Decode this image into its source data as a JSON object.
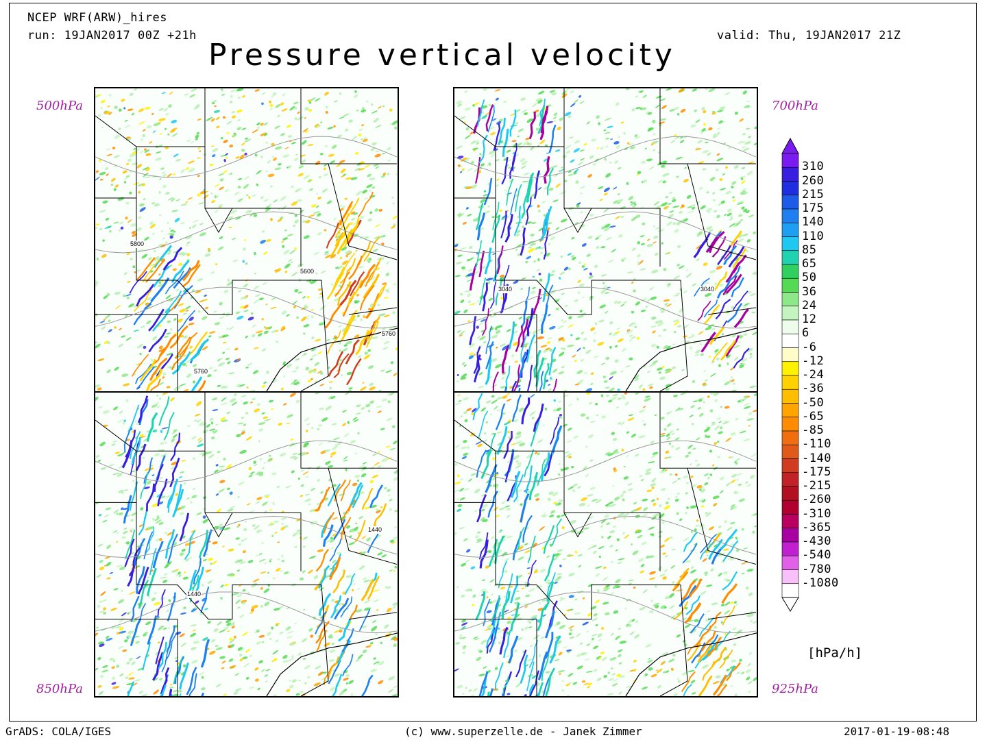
{
  "header": {
    "model": "NCEP WRF(ARW)_hires",
    "run": "run: 19JAN2017 00Z +21h",
    "valid": "valid: Thu, 19JAN2017 21Z",
    "title": "Pressure vertical velocity"
  },
  "panels": [
    {
      "level": "500hPa",
      "contour_labels": [
        "5800",
        "5600",
        "5760",
        "5760"
      ]
    },
    {
      "level": "700hPa",
      "contour_labels": [
        "3040",
        "3040"
      ]
    },
    {
      "level": "850hPa",
      "contour_labels": [
        "1440",
        "1440"
      ]
    },
    {
      "level": "925hPa",
      "contour_labels": []
    }
  ],
  "colorbar": {
    "labels": [
      "310",
      "260",
      "215",
      "175",
      "140",
      "110",
      "85",
      "65",
      "50",
      "36",
      "24",
      "12",
      "6",
      "-6",
      "-12",
      "-24",
      "-36",
      "-50",
      "-65",
      "-85",
      "-110",
      "-140",
      "-175",
      "-215",
      "-260",
      "-310",
      "-365",
      "-430",
      "-540",
      "-780",
      "-1080"
    ],
    "colors": [
      "#7a1cf0",
      "#3a1ee0",
      "#1f2fe0",
      "#1e5ce8",
      "#1f7ff0",
      "#1ea0f2",
      "#1ec8f0",
      "#20d2b0",
      "#2fd060",
      "#55da55",
      "#8ee88a",
      "#c4f5c0",
      "#eefcec",
      "#ffffff",
      "#fffcc8",
      "#fff200",
      "#ffd200",
      "#ffbe00",
      "#ffa400",
      "#ff8c00",
      "#f06e10",
      "#e05a1a",
      "#d03c20",
      "#c02228",
      "#b01020",
      "#b00030",
      "#b80060",
      "#a800a0",
      "#c020d0",
      "#e060e8",
      "#f8c0f8",
      "#ffffff"
    ],
    "units": "[hPa/h]"
  },
  "footer": {
    "left": "GrADS: COLA/IGES",
    "center": "(c) www.superzelle.de - Janek Zimmer",
    "right": "2017-01-19-08:48"
  }
}
